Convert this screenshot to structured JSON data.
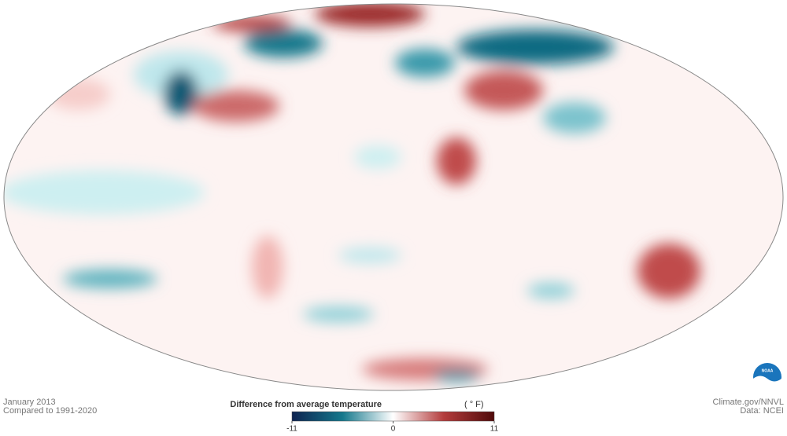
{
  "caption": {
    "period": "January 2013",
    "baseline": "Compared to 1991-2020"
  },
  "credit": {
    "site": "Climate.gov/NNVL",
    "source": "Data: NCEI"
  },
  "logo_text": "NOAA",
  "colorbar": {
    "title": "Difference from average temperature",
    "unit": "( ° F)",
    "range": [
      -11,
      11
    ],
    "ticks": [
      -11,
      0,
      11
    ],
    "colors": [
      "#0d2350",
      "#14788c",
      "#ffffff",
      "#b43c3c",
      "#500a0a"
    ]
  }
}
